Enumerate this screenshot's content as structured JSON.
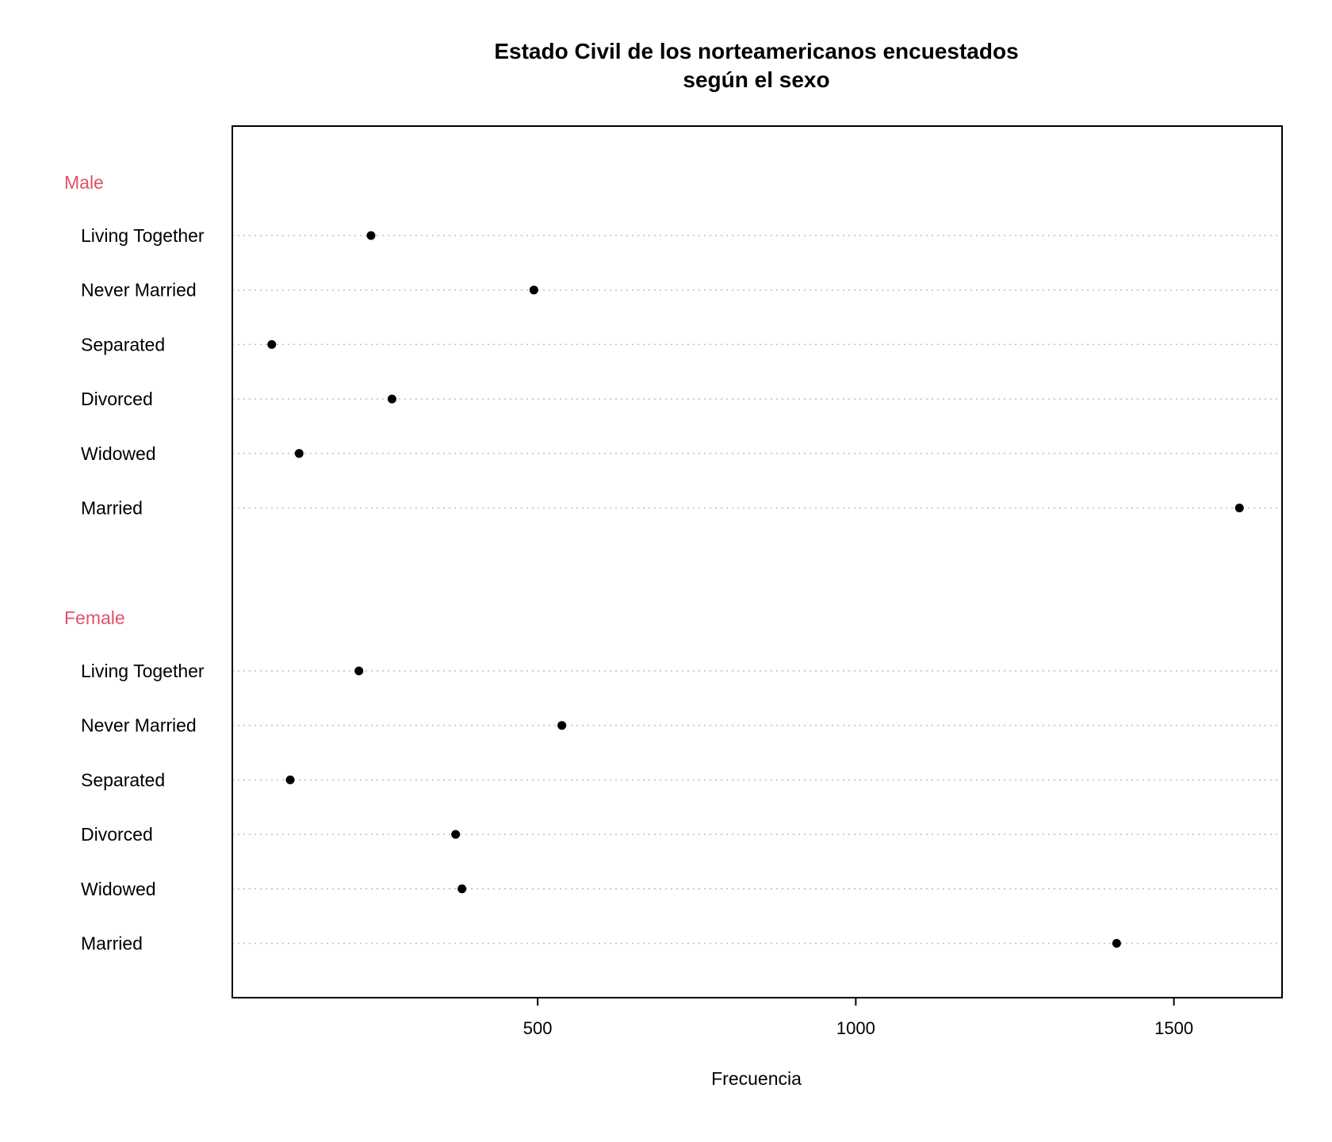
{
  "chart_data": {
    "type": "dot",
    "title_line1": "Estado Civil de los norteamericanos encuestados",
    "title_line2": "según el sexo",
    "xlabel": "Frecuencia",
    "xlim": [
      20,
      1670
    ],
    "xticks": [
      500,
      1000,
      1500
    ],
    "grid": "dotted horizontal lines per category",
    "group_label_color": "#DF536B",
    "point_color": "#000000",
    "groups": [
      {
        "name": "Male",
        "categories": [
          "Living Together",
          "Never Married",
          "Separated",
          "Divorced",
          "Widowed",
          "Married"
        ],
        "values": [
          238,
          494,
          82,
          271,
          125,
          1603
        ]
      },
      {
        "name": "Female",
        "categories": [
          "Living Together",
          "Never Married",
          "Separated",
          "Divorced",
          "Widowed",
          "Married"
        ],
        "values": [
          219,
          538,
          111,
          371,
          381,
          1410
        ]
      }
    ]
  }
}
